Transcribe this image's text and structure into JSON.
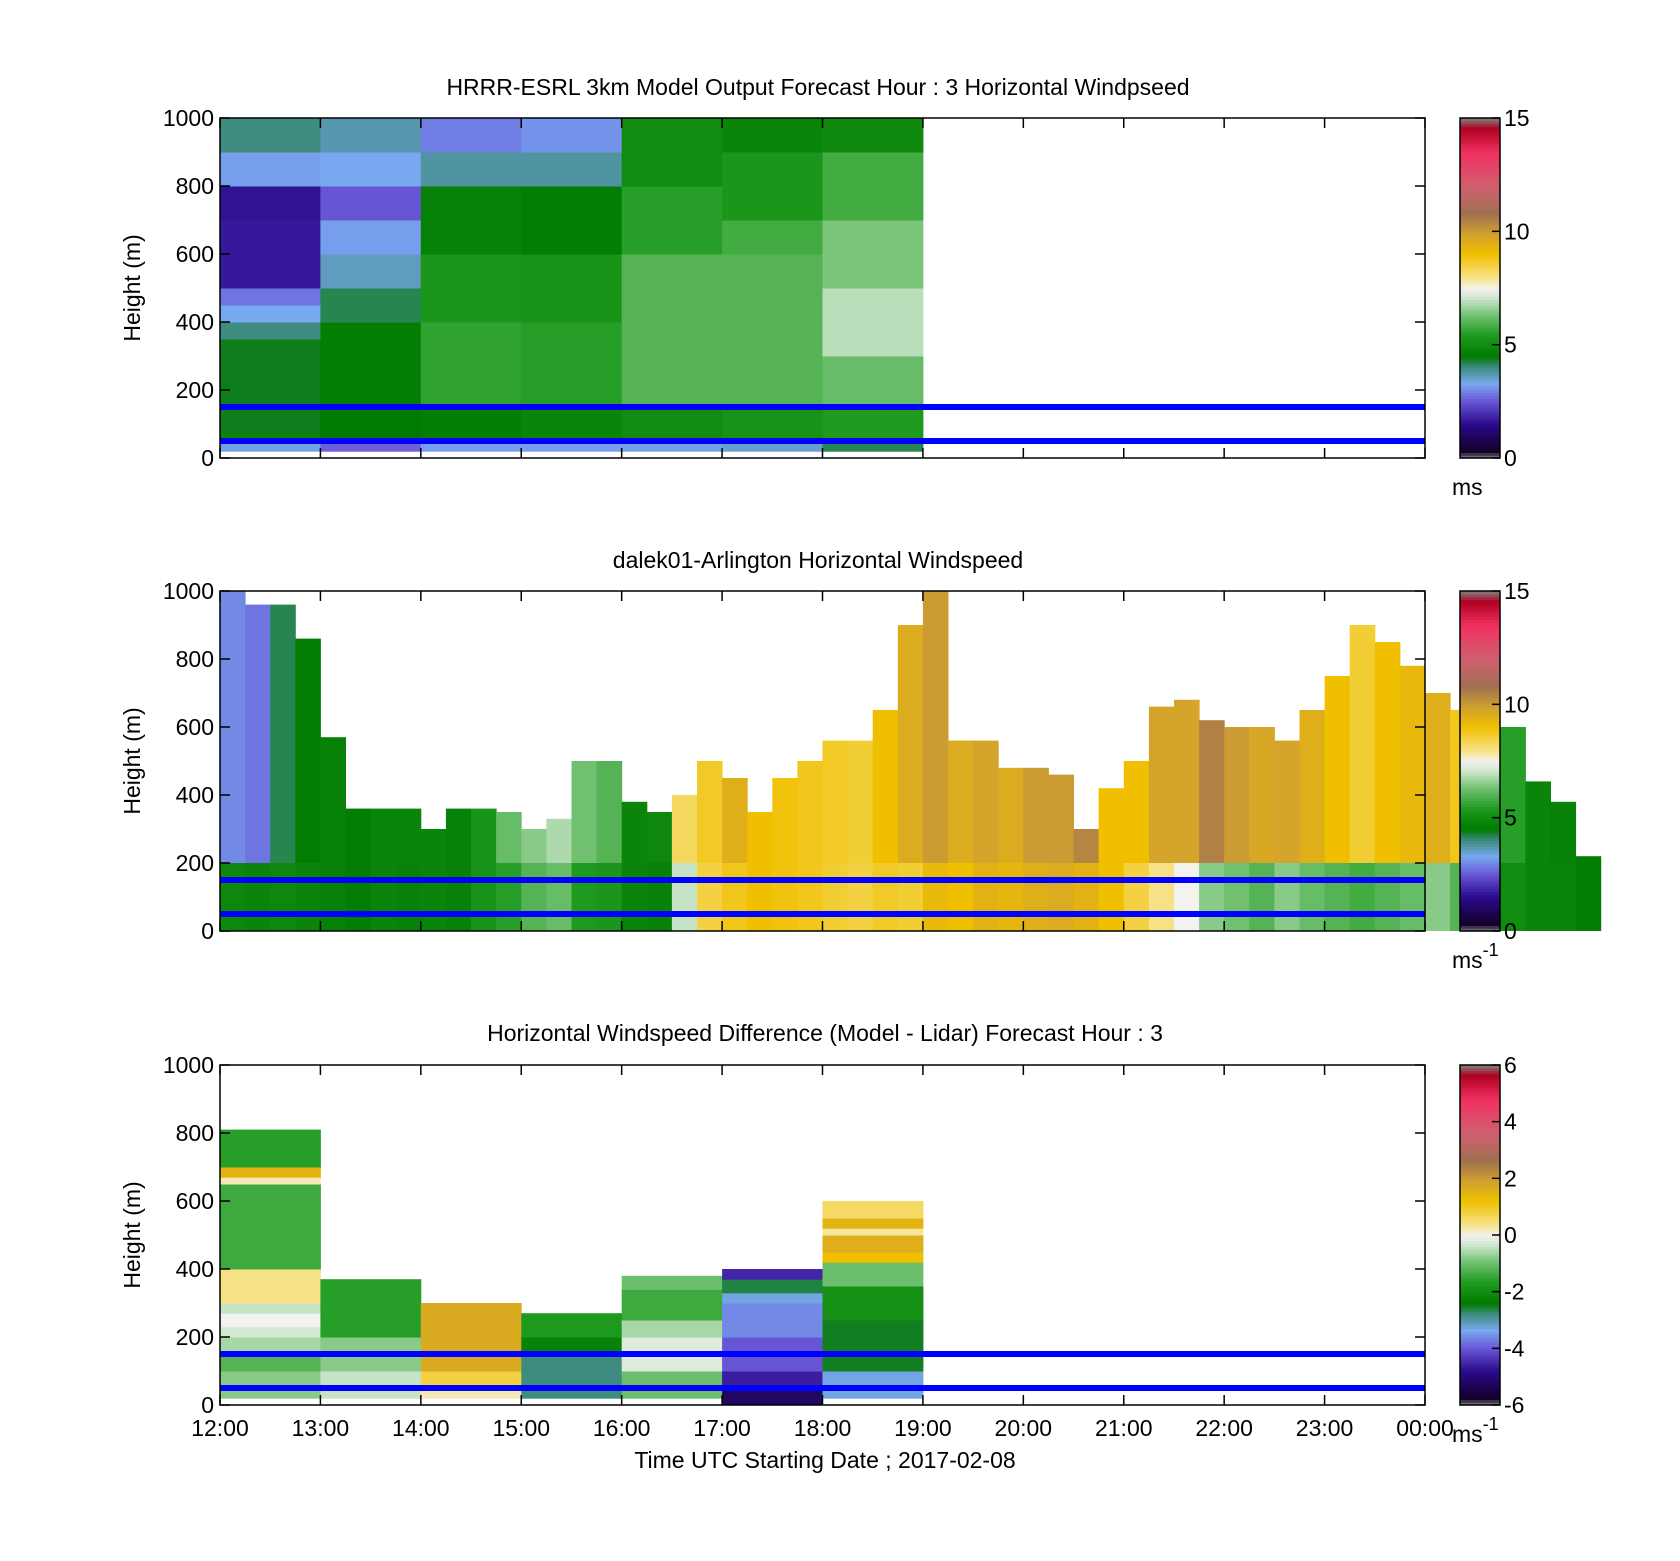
{
  "figure": {
    "xlabel": "Time UTC  Starting Date ; 2017-02-08",
    "x_ticks": [
      "12:00",
      "13:00",
      "14:00",
      "15:00",
      "16:00",
      "17:00",
      "18:00",
      "19:00",
      "20:00",
      "21:00",
      "22:00",
      "23:00",
      "00:00"
    ]
  },
  "chart_data": [
    {
      "type": "heatmap",
      "title": "HRRR-ESRL 3km Model Output   Forecast Hour : 3 Horizontal Windpseed",
      "ylabel": "Height (m)",
      "xlim_hours": [
        12,
        24
      ],
      "ylim": [
        0,
        1000
      ],
      "y_ticks": [
        "0",
        "200",
        "400",
        "600",
        "800",
        "1000"
      ],
      "colorbar": {
        "ticks": [
          "0",
          "5",
          "10",
          "15"
        ],
        "range": [
          0,
          15
        ],
        "unit": "ms",
        "unit_sup": ""
      },
      "reference_lines_m": [
        150,
        50
      ],
      "columns": [
        {
          "start": 12,
          "end": 13,
          "cells": [
            {
              "y0": 20,
              "y1": 50,
              "v": 3.4
            },
            {
              "y0": 50,
              "y1": 75,
              "v": 4.8
            },
            {
              "y0": 75,
              "y1": 150,
              "v": 4.4
            },
            {
              "y0": 150,
              "y1": 350,
              "v": 4.4
            },
            {
              "y0": 350,
              "y1": 400,
              "v": 4.0
            },
            {
              "y0": 400,
              "y1": 450,
              "v": 3.3
            },
            {
              "y0": 450,
              "y1": 500,
              "v": 2.8
            },
            {
              "y0": 500,
              "y1": 700,
              "v": 1.7
            },
            {
              "y0": 700,
              "y1": 800,
              "v": 1.6
            },
            {
              "y0": 800,
              "y1": 900,
              "v": 3.2
            },
            {
              "y0": 900,
              "y1": 1000,
              "v": 4.0
            }
          ]
        },
        {
          "start": 13,
          "end": 14,
          "cells": [
            {
              "y0": 20,
              "y1": 50,
              "v": 2.6
            },
            {
              "y0": 50,
              "y1": 150,
              "v": 4.5
            },
            {
              "y0": 150,
              "y1": 400,
              "v": 4.6
            },
            {
              "y0": 400,
              "y1": 500,
              "v": 4.2
            },
            {
              "y0": 500,
              "y1": 600,
              "v": 3.6
            },
            {
              "y0": 600,
              "y1": 700,
              "v": 3.2
            },
            {
              "y0": 700,
              "y1": 800,
              "v": 2.5
            },
            {
              "y0": 800,
              "y1": 900,
              "v": 3.3
            },
            {
              "y0": 900,
              "y1": 1000,
              "v": 3.7
            }
          ]
        },
        {
          "start": 14,
          "end": 15,
          "cells": [
            {
              "y0": 20,
              "y1": 50,
              "v": 3.2
            },
            {
              "y0": 50,
              "y1": 150,
              "v": 4.6
            },
            {
              "y0": 150,
              "y1": 400,
              "v": 5.6
            },
            {
              "y0": 400,
              "y1": 600,
              "v": 5.3
            },
            {
              "y0": 600,
              "y1": 800,
              "v": 4.7
            },
            {
              "y0": 800,
              "y1": 900,
              "v": 3.8
            },
            {
              "y0": 900,
              "y1": 1000,
              "v": 2.9
            }
          ]
        },
        {
          "start": 15,
          "end": 16,
          "cells": [
            {
              "y0": 20,
              "y1": 50,
              "v": 3.2
            },
            {
              "y0": 50,
              "y1": 150,
              "v": 4.8
            },
            {
              "y0": 150,
              "y1": 400,
              "v": 5.5
            },
            {
              "y0": 400,
              "y1": 600,
              "v": 5.2
            },
            {
              "y0": 600,
              "y1": 800,
              "v": 4.6
            },
            {
              "y0": 800,
              "y1": 900,
              "v": 3.8
            },
            {
              "y0": 900,
              "y1": 1000,
              "v": 3.1
            }
          ]
        },
        {
          "start": 16,
          "end": 17,
          "cells": [
            {
              "y0": 20,
              "y1": 50,
              "v": 3.4
            },
            {
              "y0": 50,
              "y1": 150,
              "v": 5.0
            },
            {
              "y0": 150,
              "y1": 400,
              "v": 6.0
            },
            {
              "y0": 400,
              "y1": 600,
              "v": 6.0
            },
            {
              "y0": 600,
              "y1": 800,
              "v": 5.5
            },
            {
              "y0": 800,
              "y1": 1000,
              "v": 5.0
            }
          ]
        },
        {
          "start": 17,
          "end": 18,
          "cells": [
            {
              "y0": 20,
              "y1": 50,
              "v": 3.5
            },
            {
              "y0": 50,
              "y1": 150,
              "v": 5.2
            },
            {
              "y0": 150,
              "y1": 400,
              "v": 6.0
            },
            {
              "y0": 400,
              "y1": 600,
              "v": 6.0
            },
            {
              "y0": 600,
              "y1": 700,
              "v": 5.8
            },
            {
              "y0": 700,
              "y1": 900,
              "v": 5.3
            },
            {
              "y0": 900,
              "y1": 1000,
              "v": 4.8
            }
          ]
        },
        {
          "start": 18,
          "end": 19,
          "cells": [
            {
              "y0": 20,
              "y1": 50,
              "v": 4.2
            },
            {
              "y0": 50,
              "y1": 150,
              "v": 5.4
            },
            {
              "y0": 150,
              "y1": 300,
              "v": 6.2
            },
            {
              "y0": 300,
              "y1": 500,
              "v": 6.9
            },
            {
              "y0": 500,
              "y1": 700,
              "v": 6.4
            },
            {
              "y0": 700,
              "y1": 900,
              "v": 5.8
            },
            {
              "y0": 900,
              "y1": 1000,
              "v": 4.9
            }
          ]
        }
      ]
    },
    {
      "type": "heatmap",
      "title": "dalek01-Arlington  Horizontal Windspeed",
      "ylabel": "Height (m)",
      "xlim_hours": [
        12,
        24
      ],
      "ylim": [
        0,
        1000
      ],
      "y_ticks": [
        "0",
        "200",
        "400",
        "600",
        "800",
        "1000"
      ],
      "colorbar": {
        "ticks": [
          "0",
          "5",
          "10",
          "15"
        ],
        "range": [
          0,
          15
        ],
        "unit": "ms",
        "unit_sup": "-1"
      },
      "reference_lines_m": [
        150,
        50
      ],
      "time_step_hours": 0.25,
      "top_m": [
        1000,
        960,
        960,
        860,
        570,
        360,
        360,
        360,
        300,
        360,
        360,
        350,
        300,
        330,
        500,
        500,
        380,
        350,
        400,
        500,
        450,
        350,
        450,
        500,
        560,
        560,
        650,
        900,
        1000,
        560,
        560,
        480,
        480,
        460,
        300,
        420,
        500,
        660,
        680,
        620,
        600,
        600,
        560,
        650,
        750,
        900,
        850,
        780,
        700,
        650,
        620,
        600,
        440,
        380,
        220
      ],
      "values_low": [
        4.9,
        4.8,
        4.9,
        4.8,
        4.7,
        4.6,
        4.8,
        4.7,
        4.8,
        4.7,
        5.2,
        5.5,
        6.0,
        6.2,
        5.4,
        5.3,
        4.8,
        4.7,
        7.0,
        8.5,
        8.8,
        9.0,
        8.9,
        8.8,
        8.6,
        8.5,
        8.7,
        8.6,
        9.2,
        9.0,
        9.4,
        9.3,
        9.5,
        9.6,
        9.4,
        9.0,
        8.5,
        8.0,
        7.5,
        6.5,
        6.3,
        6.0,
        6.5,
        6.2,
        6.0,
        5.8,
        6.0,
        6.2,
        6.5,
        6.0,
        5.5,
        5.0,
        4.8,
        4.8,
        4.6
      ],
      "values_mid": [
        3.0,
        2.8,
        4.2,
        4.6,
        4.7,
        4.6,
        4.8,
        4.8,
        4.8,
        4.7,
        5.2,
        6.2,
        6.5,
        6.8,
        6.3,
        6.0,
        4.8,
        4.9,
        8.3,
        8.7,
        9.5,
        9.0,
        8.9,
        8.8,
        8.7,
        8.6,
        9.0,
        9.6,
        10.0,
        9.6,
        9.8,
        9.6,
        10.0,
        10.0,
        10.4,
        9.0,
        9.0,
        9.8,
        9.8,
        10.5,
        10.0,
        9.7,
        9.8,
        9.5,
        9.0,
        8.6,
        9.0,
        9.2,
        9.5,
        8.8,
        8.5,
        5.5,
        4.8,
        4.7,
        4.6
      ]
    },
    {
      "type": "heatmap",
      "title": "Horizontal Windspeed Difference (Model - Lidar) Forecast Hour : 3",
      "ylabel": "Height (m)",
      "xlim_hours": [
        12,
        24
      ],
      "ylim": [
        0,
        1000
      ],
      "y_ticks": [
        "0",
        "200",
        "400",
        "600",
        "800",
        "1000"
      ],
      "colorbar": {
        "ticks": [
          "-6",
          "-4",
          "-2",
          "0",
          "2",
          "4",
          "6"
        ],
        "range": [
          -6,
          6
        ],
        "unit": "ms",
        "unit_sup": "-1"
      },
      "reference_lines_m": [
        150,
        50
      ],
      "columns": [
        {
          "start": 12,
          "end": 13,
          "cells": [
            {
              "y0": 20,
              "y1": 100,
              "v": -0.8
            },
            {
              "y0": 100,
              "y1": 150,
              "v": -1.2
            },
            {
              "y0": 150,
              "y1": 200,
              "v": -0.6
            },
            {
              "y0": 200,
              "y1": 230,
              "v": -0.3
            },
            {
              "y0": 230,
              "y1": 270,
              "v": 0.0
            },
            {
              "y0": 270,
              "y1": 300,
              "v": -0.4
            },
            {
              "y0": 300,
              "y1": 400,
              "v": 0.4
            },
            {
              "y0": 400,
              "y1": 650,
              "v": -1.4
            },
            {
              "y0": 650,
              "y1": 670,
              "v": 0.2
            },
            {
              "y0": 670,
              "y1": 700,
              "v": 1.5
            },
            {
              "y0": 700,
              "y1": 810,
              "v": -1.6
            }
          ]
        },
        {
          "start": 13,
          "end": 14,
          "cells": [
            {
              "y0": 20,
              "y1": 100,
              "v": -0.4
            },
            {
              "y0": 100,
              "y1": 200,
              "v": -0.8
            },
            {
              "y0": 200,
              "y1": 370,
              "v": -1.6
            }
          ]
        },
        {
          "start": 14,
          "end": 15,
          "cells": [
            {
              "y0": 20,
              "y1": 50,
              "v": 0.2
            },
            {
              "y0": 50,
              "y1": 100,
              "v": 0.8
            },
            {
              "y0": 100,
              "y1": 300,
              "v": 1.7
            }
          ]
        },
        {
          "start": 15,
          "end": 16,
          "cells": [
            {
              "y0": 20,
              "y1": 150,
              "v": -2.8
            },
            {
              "y0": 150,
              "y1": 200,
              "v": -2.2
            },
            {
              "y0": 200,
              "y1": 270,
              "v": -1.7
            }
          ]
        },
        {
          "start": 16,
          "end": 17,
          "cells": [
            {
              "y0": 20,
              "y1": 100,
              "v": -1.0
            },
            {
              "y0": 100,
              "y1": 200,
              "v": -0.2
            },
            {
              "y0": 200,
              "y1": 250,
              "v": -0.6
            },
            {
              "y0": 250,
              "y1": 340,
              "v": -1.4
            },
            {
              "y0": 340,
              "y1": 380,
              "v": -1.0
            }
          ]
        },
        {
          "start": 17,
          "end": 18,
          "cells": [
            {
              "y0": 0,
              "y1": 50,
              "v": -5.2
            },
            {
              "y0": 50,
              "y1": 100,
              "v": -4.6
            },
            {
              "y0": 100,
              "y1": 200,
              "v": -4.0
            },
            {
              "y0": 200,
              "y1": 300,
              "v": -3.6
            },
            {
              "y0": 300,
              "y1": 330,
              "v": -3.3
            },
            {
              "y0": 330,
              "y1": 370,
              "v": -2.6
            },
            {
              "y0": 370,
              "y1": 400,
              "v": -4.5
            }
          ]
        },
        {
          "start": 18,
          "end": 19,
          "cells": [
            {
              "y0": 20,
              "y1": 100,
              "v": -3.3
            },
            {
              "y0": 100,
              "y1": 250,
              "v": -2.5
            },
            {
              "y0": 250,
              "y1": 350,
              "v": -1.9
            },
            {
              "y0": 350,
              "y1": 420,
              "v": -1.0
            },
            {
              "y0": 420,
              "y1": 450,
              "v": 1.2
            },
            {
              "y0": 450,
              "y1": 500,
              "v": 1.6
            },
            {
              "y0": 500,
              "y1": 520,
              "v": 0.3
            },
            {
              "y0": 520,
              "y1": 550,
              "v": 1.5
            },
            {
              "y0": 550,
              "y1": 600,
              "v": 0.6
            }
          ]
        }
      ]
    }
  ]
}
